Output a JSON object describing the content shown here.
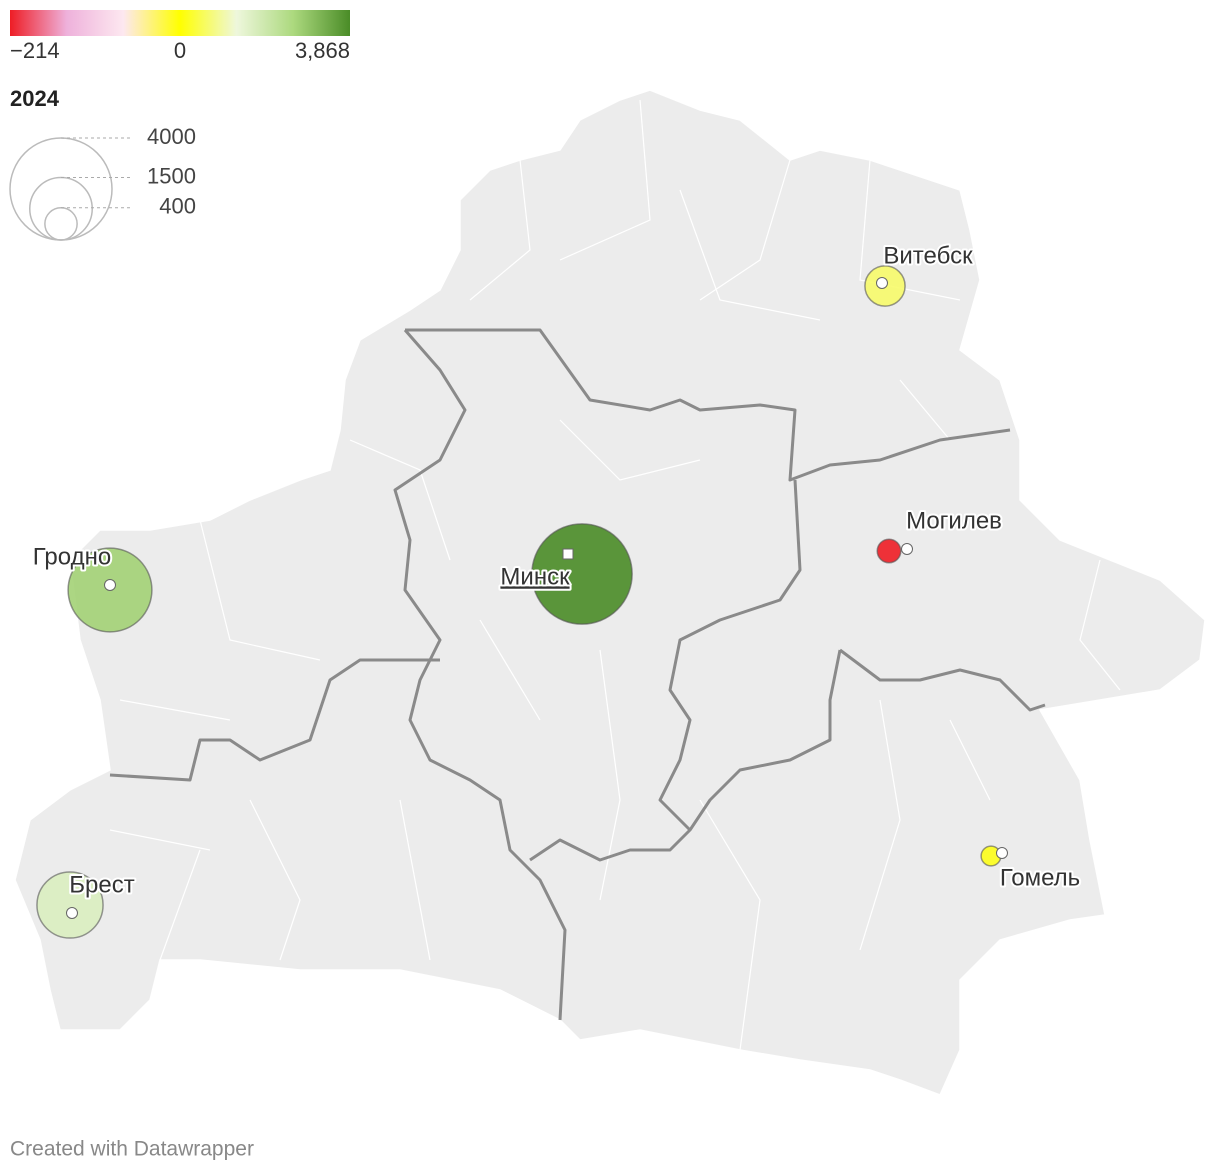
{
  "color_legend": {
    "ticks": [
      {
        "value": -214,
        "label": "−214"
      },
      0,
      {
        "value": 3868,
        "label": "3,868"
      }
    ],
    "negative_colors": [
      "#ee1d25",
      "#eeb1db",
      "#fde8f0",
      "#ffff00"
    ],
    "positive_colors": [
      "#ffff00",
      "#eef7dc",
      "#acd97e",
      "#4a8c27"
    ]
  },
  "size_legend": {
    "title": "2024",
    "ticks": [
      4000,
      1500,
      400
    ]
  },
  "cities": [
    {
      "name": "Минск",
      "value": 3868
    },
    {
      "name": "Гродно",
      "value": 2700
    },
    {
      "name": "Брест",
      "value": 1680
    },
    {
      "name": "Витебск",
      "value": 620
    },
    {
      "name": "Могилев",
      "value": -214
    },
    {
      "name": "Гомель",
      "value": 150
    }
  ],
  "footer": "Created with Datawrapper"
}
